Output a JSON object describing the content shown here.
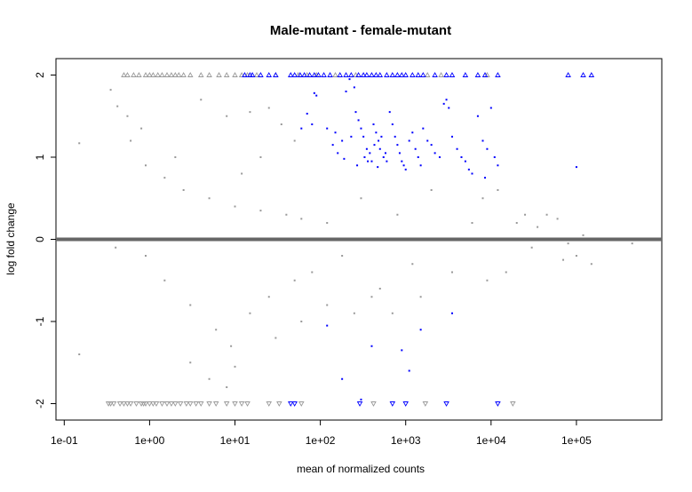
{
  "chart_data": {
    "type": "scatter",
    "title": "Male-mutant - female-mutant",
    "xlabel": "mean of normalized counts",
    "ylabel": "log fold change",
    "x_scale": "log10",
    "xlim": [
      0.08,
      1000000
    ],
    "ylim": [
      -2.2,
      2.2
    ],
    "x_ticks": [
      {
        "value": 0.1,
        "label": "1e-01"
      },
      {
        "value": 1,
        "label": "1e+00"
      },
      {
        "value": 10,
        "label": "1e+01"
      },
      {
        "value": 100,
        "label": "1e+02"
      },
      {
        "value": 1000,
        "label": "1e+03"
      },
      {
        "value": 10000,
        "label": "1e+04"
      },
      {
        "value": 100000,
        "label": "1e+05"
      }
    ],
    "y_ticks": [
      {
        "value": -2,
        "label": "-2"
      },
      {
        "value": -1,
        "label": "-1"
      },
      {
        "value": 0,
        "label": "0"
      },
      {
        "value": 1,
        "label": "1"
      },
      {
        "value": 2,
        "label": "2"
      }
    ],
    "reference_line": {
      "y": 0,
      "color": "#666666"
    },
    "grid": false,
    "legend": "none",
    "colors": {
      "non_significant": "#999999",
      "significant": "#0000ff"
    },
    "series": [
      {
        "points": [
          [
            0.15,
            1.17
          ],
          [
            0.15,
            -1.4
          ],
          [
            0.35,
            1.82
          ],
          [
            0.42,
            1.62
          ],
          [
            0.55,
            1.5
          ],
          [
            0.6,
            1.2
          ],
          [
            0.8,
            1.35
          ],
          [
            0.9,
            0.9
          ],
          [
            1.5,
            0.75
          ],
          [
            2.5,
            0.6
          ],
          [
            5,
            0.5
          ],
          [
            10,
            0.4
          ],
          [
            20,
            0.35
          ],
          [
            40,
            0.3
          ],
          [
            60,
            0.25
          ],
          [
            0.4,
            -0.1
          ],
          [
            0.9,
            -0.2
          ],
          [
            1.5,
            -0.5
          ],
          [
            3,
            -0.8
          ],
          [
            6,
            -1.1
          ],
          [
            9,
            -1.3
          ],
          [
            15,
            -0.9
          ],
          [
            25,
            -0.7
          ],
          [
            50,
            -0.5
          ],
          [
            80,
            -0.4
          ],
          [
            120,
            0.2
          ],
          [
            180,
            -0.2
          ],
          [
            300,
            0.5
          ],
          [
            500,
            -0.6
          ],
          [
            800,
            0.3
          ],
          [
            1200,
            -0.3
          ],
          [
            2000,
            0.6
          ],
          [
            3500,
            -0.4
          ],
          [
            6000,
            0.2
          ],
          [
            8000,
            0.5
          ],
          [
            9000,
            -0.5
          ],
          [
            12000,
            0.6
          ],
          [
            15000,
            -0.4
          ],
          [
            20000,
            0.2
          ],
          [
            25000,
            0.3
          ],
          [
            30000,
            -0.1
          ],
          [
            45000,
            0.3
          ],
          [
            60000,
            0.25
          ],
          [
            80000,
            -0.05
          ],
          [
            100000,
            -0.2
          ],
          [
            150000,
            -0.3
          ],
          [
            450000,
            -0.05
          ],
          [
            120000,
            0.05
          ],
          [
            70000,
            -0.25
          ],
          [
            35000,
            0.15
          ],
          [
            15,
            1.55
          ],
          [
            25,
            1.6
          ],
          [
            35,
            1.4
          ],
          [
            50,
            1.2
          ],
          [
            20,
            1.0
          ],
          [
            12,
            0.8
          ],
          [
            8,
            1.5
          ],
          [
            4,
            1.7
          ],
          [
            2,
            1.0
          ],
          [
            3,
            -1.5
          ],
          [
            5,
            -1.7
          ],
          [
            8,
            -1.8
          ],
          [
            10,
            -1.55
          ],
          [
            30,
            -1.2
          ],
          [
            60,
            -1.0
          ],
          [
            120,
            -0.8
          ],
          [
            250,
            -0.9
          ],
          [
            400,
            -0.7
          ],
          [
            700,
            -0.9
          ],
          [
            1500,
            -0.7
          ]
        ],
        "clipped_top": [
          0.5,
          0.55,
          0.65,
          0.75,
          0.9,
          1.0,
          1.1,
          1.25,
          1.4,
          1.6,
          1.8,
          2.0,
          2.2,
          2.5,
          3.0,
          4.0,
          5.0,
          6.5,
          8.0,
          10.0,
          12.0,
          14.0,
          18.0,
          30.0,
          55.0,
          70.0,
          90.0,
          150.0,
          260.0,
          1800.0,
          2600.0,
          9000.0
        ],
        "clipped_bottom": [
          0.33,
          0.35,
          0.38,
          0.45,
          0.5,
          0.55,
          0.6,
          0.7,
          0.8,
          0.85,
          0.9,
          1.0,
          1.1,
          1.2,
          1.4,
          1.6,
          1.8,
          2.0,
          2.3,
          2.7,
          3.0,
          3.5,
          4.0,
          5.0,
          6.0,
          8.0,
          10.0,
          12.0,
          14.0,
          25.0,
          33.0,
          60.0,
          420.0,
          1700.0,
          18000.0
        ],
        "marker": "dot",
        "color": "#999999"
      },
      {
        "points": [
          [
            85,
            1.78
          ],
          [
            90,
            1.75
          ],
          [
            70,
            1.53
          ],
          [
            80,
            1.4
          ],
          [
            60,
            1.35
          ],
          [
            120,
            1.35
          ],
          [
            150,
            1.3
          ],
          [
            180,
            1.2
          ],
          [
            200,
            1.8
          ],
          [
            220,
            1.95
          ],
          [
            250,
            1.85
          ],
          [
            260,
            1.55
          ],
          [
            280,
            1.45
          ],
          [
            300,
            1.35
          ],
          [
            320,
            1.25
          ],
          [
            350,
            1.1
          ],
          [
            380,
            1.05
          ],
          [
            400,
            0.95
          ],
          [
            420,
            1.4
          ],
          [
            450,
            1.3
          ],
          [
            480,
            1.2
          ],
          [
            500,
            1.1
          ],
          [
            550,
            1.0
          ],
          [
            600,
            0.95
          ],
          [
            650,
            1.55
          ],
          [
            700,
            1.4
          ],
          [
            750,
            1.25
          ],
          [
            800,
            1.15
          ],
          [
            850,
            1.05
          ],
          [
            900,
            0.95
          ],
          [
            950,
            0.9
          ],
          [
            1000,
            0.85
          ],
          [
            1100,
            1.2
          ],
          [
            1200,
            1.3
          ],
          [
            1300,
            1.1
          ],
          [
            1400,
            1.0
          ],
          [
            1500,
            0.9
          ],
          [
            1600,
            1.35
          ],
          [
            1800,
            1.2
          ],
          [
            2000,
            1.15
          ],
          [
            2200,
            1.05
          ],
          [
            2500,
            1.0
          ],
          [
            2800,
            1.65
          ],
          [
            3000,
            1.7
          ],
          [
            3200,
            1.6
          ],
          [
            3500,
            1.25
          ],
          [
            4000,
            1.1
          ],
          [
            4500,
            1.0
          ],
          [
            5000,
            0.95
          ],
          [
            5500,
            0.85
          ],
          [
            6000,
            0.8
          ],
          [
            7000,
            1.5
          ],
          [
            8000,
            1.2
          ],
          [
            9000,
            1.1
          ],
          [
            10000,
            1.6
          ],
          [
            11000,
            1.0
          ],
          [
            12000,
            0.9
          ],
          [
            8500,
            0.75
          ],
          [
            100000,
            0.88
          ],
          [
            140,
            1.15
          ],
          [
            160,
            1.05
          ],
          [
            190,
            0.98
          ],
          [
            230,
            1.25
          ],
          [
            270,
            0.9
          ],
          [
            330,
            1.0
          ],
          [
            360,
            0.95
          ],
          [
            430,
            1.15
          ],
          [
            470,
            0.88
          ],
          [
            520,
            1.25
          ],
          [
            580,
            1.05
          ],
          [
            120,
            -1.05
          ],
          [
            180,
            -1.7
          ],
          [
            400,
            -1.3
          ],
          [
            1100,
            -1.6
          ],
          [
            1500,
            -1.1
          ],
          [
            3500,
            -0.9
          ],
          [
            900,
            -1.35
          ],
          [
            300,
            -1.95
          ]
        ],
        "clipped_top": [
          13.0,
          15.0,
          16.0,
          20.0,
          25.0,
          30.0,
          45.0,
          50.0,
          58.0,
          65.0,
          75.0,
          85.0,
          95.0,
          110.0,
          130.0,
          170.0,
          200.0,
          230.0,
          280.0,
          320.0,
          350.0,
          400.0,
          450.0,
          500.0,
          600.0,
          700.0,
          800.0,
          900.0,
          1000.0,
          1200.0,
          1400.0,
          1600.0,
          2200.0,
          3000.0,
          3500.0,
          5000.0,
          7000.0,
          8500.0,
          12000.0,
          80000.0,
          120000.0,
          150000.0
        ],
        "clipped_bottom": [
          45.0,
          50.0,
          290.0,
          700.0,
          1000.0,
          3000.0,
          12000.0
        ],
        "marker": "dot",
        "color": "#0000ff"
      }
    ]
  }
}
